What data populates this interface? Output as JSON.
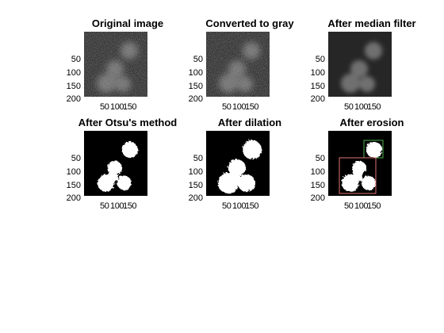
{
  "figure": {
    "panels": [
      {
        "id": "original",
        "title": "Original image",
        "kind": "noisy"
      },
      {
        "id": "gray",
        "title": "Converted to gray",
        "kind": "noisy"
      },
      {
        "id": "median",
        "title": "After median filter",
        "kind": "smooth"
      },
      {
        "id": "otsu",
        "title": "After Otsu's method",
        "kind": "binary"
      },
      {
        "id": "dilation",
        "title": "After dilation",
        "kind": "binary"
      },
      {
        "id": "erosion",
        "title": "After erosion",
        "kind": "binary-boxes"
      }
    ],
    "y_ticks": [
      "50",
      "100",
      "150",
      "200"
    ],
    "x_ticks": [
      "50",
      "100",
      "150"
    ],
    "box_colors": {
      "top": "#4caf50",
      "bottom": "#e57373"
    }
  }
}
